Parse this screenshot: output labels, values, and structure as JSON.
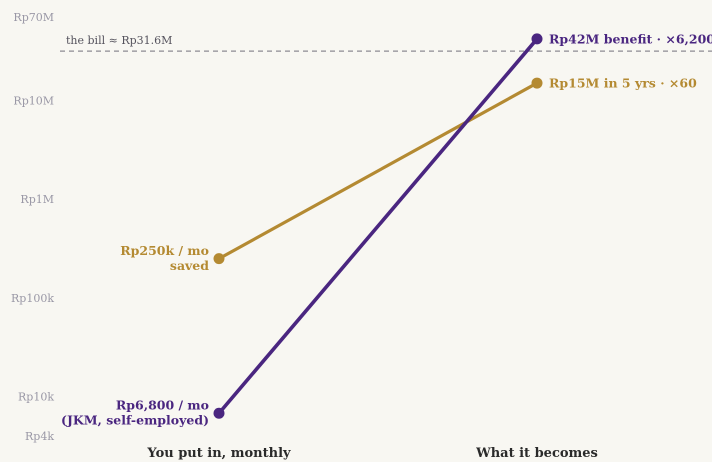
{
  "chart_data": {
    "type": "line",
    "y_scale": "log",
    "ylim": [
      4000,
      70000000
    ],
    "categories": [
      "You put in, monthly",
      "What it becomes"
    ],
    "y_ticks": [
      {
        "value": 70000000,
        "label": "Rp70M"
      },
      {
        "value": 10000000,
        "label": "Rp10M"
      },
      {
        "value": 1000000,
        "label": "Rp1M"
      },
      {
        "value": 100000,
        "label": "Rp100k"
      },
      {
        "value": 10000,
        "label": "Rp10k"
      },
      {
        "value": 4000,
        "label": "Rp4k"
      }
    ],
    "reference_line": {
      "value": 31600000,
      "label": "the bill ≈ Rp31.6M"
    },
    "series": [
      {
        "color": "#b48a32",
        "values": [
          250000,
          15000000
        ],
        "start_label": [
          "Rp250k / mo",
          "saved"
        ],
        "end_label": "Rp15M in 5 yrs · ×60"
      },
      {
        "color": "#4a2680",
        "values": [
          6800,
          42000000
        ],
        "start_label": [
          "Rp6,800 / mo",
          "(JKM, self-employed)"
        ],
        "end_label": "Rp42M benefit · ×6,200"
      }
    ]
  }
}
